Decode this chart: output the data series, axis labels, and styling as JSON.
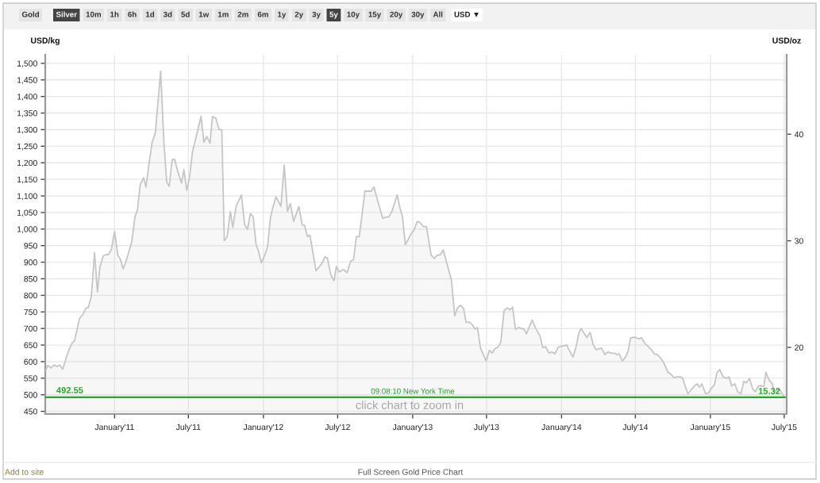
{
  "chart_data": {
    "type": "area",
    "color": "#c6c6c6",
    "ylabel": "USD/kg",
    "y2label": "USD/oz",
    "x": [
      "2010-07-16",
      "2010-07-21",
      "2010-07-29",
      "2010-08-06",
      "2010-08-13",
      "2010-08-19",
      "2010-08-27",
      "2010-09-04",
      "2010-09-12",
      "2010-09-19",
      "2010-09-25",
      "2010-10-07",
      "2010-10-16",
      "2010-10-23",
      "2010-10-29",
      "2010-11-05",
      "2010-11-13",
      "2010-11-20",
      "2010-11-26",
      "2010-12-04",
      "2010-12-11",
      "2010-12-17",
      "2010-12-24",
      "2011-01-01",
      "2011-01-09",
      "2011-01-15",
      "2011-01-22",
      "2011-01-28",
      "2011-02-12",
      "2011-02-20",
      "2011-02-26",
      "2011-03-05",
      "2011-03-13",
      "2011-03-19",
      "2011-03-26",
      "2011-04-03",
      "2011-04-11",
      "2011-04-24",
      "2011-05-02",
      "2011-05-09",
      "2011-05-15",
      "2011-05-22",
      "2011-05-28",
      "2011-06-05",
      "2011-06-14",
      "2011-06-20",
      "2011-06-27",
      "2011-07-04",
      "2011-07-11",
      "2011-07-19",
      "2011-08-01",
      "2011-08-08",
      "2011-08-15",
      "2011-08-23",
      "2011-08-29",
      "2011-09-06",
      "2011-09-14",
      "2011-09-21",
      "2011-09-27",
      "2011-10-04",
      "2011-10-12",
      "2011-10-18",
      "2011-10-26",
      "2011-11-08",
      "2011-11-16",
      "2011-11-23",
      "2011-11-30",
      "2011-12-07",
      "2011-12-14",
      "2011-12-20",
      "2011-12-27",
      "2012-01-04",
      "2012-01-11",
      "2012-01-18",
      "2012-01-24",
      "2012-02-01",
      "2012-02-13",
      "2012-02-21",
      "2012-02-29",
      "2012-03-07",
      "2012-03-15",
      "2012-03-28",
      "2012-04-05",
      "2012-04-11",
      "2012-04-18",
      "2012-04-24",
      "2012-05-09",
      "2012-05-22",
      "2012-05-31",
      "2012-06-06",
      "2012-06-14",
      "2012-06-22",
      "2012-06-28",
      "2012-07-05",
      "2012-07-16",
      "2012-07-24",
      "2012-08-02",
      "2012-08-09",
      "2012-08-16",
      "2012-08-23",
      "2012-09-06",
      "2012-09-21",
      "2012-09-28",
      "2012-10-09",
      "2012-10-20",
      "2012-10-26",
      "2012-11-04",
      "2012-11-11",
      "2012-11-24",
      "2012-12-01",
      "2012-12-07",
      "2012-12-14",
      "2012-12-21",
      "2012-12-29",
      "2013-01-04",
      "2013-01-12",
      "2013-01-19",
      "2013-01-27",
      "2013-02-04",
      "2013-02-15",
      "2013-02-23",
      "2013-03-02",
      "2013-03-10",
      "2013-03-17",
      "2013-04-06",
      "2013-04-14",
      "2013-04-21",
      "2013-04-28",
      "2013-05-06",
      "2013-05-12",
      "2013-05-19",
      "2013-05-27",
      "2013-06-03",
      "2013-06-09",
      "2013-06-16",
      "2013-06-30",
      "2013-07-08",
      "2013-07-15",
      "2013-07-21",
      "2013-07-29",
      "2013-08-05",
      "2013-08-13",
      "2013-08-21",
      "2013-08-27",
      "2013-09-03",
      "2013-09-10",
      "2013-09-18",
      "2013-10-01",
      "2013-10-07",
      "2013-10-21",
      "2013-10-29",
      "2013-11-09",
      "2013-11-16",
      "2013-11-23",
      "2013-12-01",
      "2013-12-08",
      "2013-12-16",
      "2013-12-24",
      "2013-12-30",
      "2014-01-14",
      "2014-01-20",
      "2014-01-29",
      "2014-02-05",
      "2014-02-13",
      "2014-02-18",
      "2014-02-26",
      "2014-03-04",
      "2014-03-12",
      "2014-03-20",
      "2014-03-27",
      "2014-04-09",
      "2014-04-17",
      "2014-04-24",
      "2014-05-03",
      "2014-05-11",
      "2014-05-17",
      "2014-05-22",
      "2014-05-30",
      "2014-06-06",
      "2014-06-13",
      "2014-06-19",
      "2014-06-26",
      "2014-07-02",
      "2014-07-10",
      "2014-07-16",
      "2014-07-25",
      "2014-08-02",
      "2014-08-09",
      "2014-08-17",
      "2014-08-24",
      "2014-08-31",
      "2014-09-08",
      "2014-09-19",
      "2014-09-27",
      "2014-10-04",
      "2014-10-12",
      "2014-10-20",
      "2014-10-25",
      "2014-11-01",
      "2014-11-07",
      "2014-11-15",
      "2014-11-23",
      "2014-11-30",
      "2014-12-05",
      "2014-12-11",
      "2014-12-20",
      "2014-12-27",
      "2015-01-03",
      "2015-01-11",
      "2015-01-17",
      "2015-01-24",
      "2015-02-01",
      "2015-02-09",
      "2015-02-16",
      "2015-02-22",
      "2015-03-02",
      "2015-03-09",
      "2015-03-17",
      "2015-03-24",
      "2015-03-30",
      "2015-04-07",
      "2015-04-15",
      "2015-04-21",
      "2015-04-29",
      "2015-05-06",
      "2015-05-12",
      "2015-05-17",
      "2015-05-25",
      "2015-06-01",
      "2015-06-07",
      "2015-06-14",
      "2015-06-20",
      "2015-06-29"
    ],
    "values": [
      574,
      589,
      581,
      590,
      585,
      590,
      577,
      610,
      638,
      656,
      664,
      730,
      744,
      762,
      764,
      798,
      929,
      810,
      886,
      918,
      923,
      923,
      937,
      993,
      921,
      910,
      880,
      898,
      961,
      1037,
      1057,
      1135,
      1155,
      1127,
      1193,
      1261,
      1290,
      1476,
      1261,
      1141,
      1129,
      1209,
      1211,
      1174,
      1139,
      1179,
      1117,
      1157,
      1233,
      1273,
      1340,
      1262,
      1279,
      1259,
      1339,
      1335,
      1301,
      1299,
      965,
      977,
      1053,
      1005,
      1069,
      1103,
      1013,
      999,
      1047,
      1036,
      953,
      933,
      898,
      921,
      945,
      1033,
      1065,
      1097,
      1069,
      1193,
      1053,
      1077,
      1023,
      1068,
      1013,
      1011,
      977,
      982,
      874,
      894,
      916,
      912,
      863,
      844,
      887,
      871,
      878,
      868,
      903,
      908,
      977,
      977,
      1115,
      1114,
      1127,
      1077,
      1032,
      1036,
      1037,
      1053,
      1103,
      1063,
      1037,
      953,
      969,
      988,
      996,
      1023,
      1020,
      1008,
      1007,
      922,
      911,
      921,
      923,
      937,
      846,
      738,
      762,
      770,
      760,
      718,
      720,
      712,
      698,
      703,
      642,
      602,
      634,
      626,
      638,
      644,
      658,
      754,
      762,
      756,
      764,
      697,
      703,
      698,
      684,
      726,
      702,
      678,
      642,
      645,
      626,
      629,
      624,
      644,
      646,
      650,
      634,
      614,
      642,
      688,
      700,
      684,
      673,
      688,
      650,
      636,
      641,
      621,
      629,
      626,
      625,
      621,
      624,
      602,
      612,
      630,
      671,
      674,
      673,
      669,
      672,
      654,
      645,
      636,
      623,
      621,
      612,
      598,
      568,
      561,
      552,
      554,
      554,
      550,
      523,
      503,
      515,
      527,
      533,
      523,
      533,
      504,
      505,
      519,
      531,
      566,
      576,
      554,
      550,
      554,
      527,
      533,
      509,
      503,
      541,
      536,
      549,
      517,
      509,
      527,
      527,
      525,
      568,
      544,
      535,
      509,
      515,
      517,
      497
    ],
    "xlim": [
      "2010-07-15",
      "2015-07-07"
    ],
    "xticks": [
      {
        "value": "2011-01-01",
        "label": "January'11"
      },
      {
        "value": "2011-07-01",
        "label": "July'11"
      },
      {
        "value": "2012-01-01",
        "label": "January'12"
      },
      {
        "value": "2012-07-01",
        "label": "July'12"
      },
      {
        "value": "2013-01-01",
        "label": "January'13"
      },
      {
        "value": "2013-07-01",
        "label": "July'13"
      },
      {
        "value": "2014-01-01",
        "label": "January'14"
      },
      {
        "value": "2014-07-01",
        "label": "July'14"
      },
      {
        "value": "2015-01-01",
        "label": "January'15"
      },
      {
        "value": "2015-07-01",
        "label": "July'15"
      }
    ],
    "ylim": [
      442,
      1526
    ],
    "yticks": [
      450,
      500,
      550,
      600,
      650,
      700,
      750,
      800,
      850,
      900,
      950,
      {
        "value": 1000,
        "label": "1,000"
      },
      {
        "value": 1050,
        "label": "1,050"
      },
      {
        "value": 1100,
        "label": "1,100"
      },
      {
        "value": 1150,
        "label": "1,150"
      },
      {
        "value": 1200,
        "label": "1,200"
      },
      {
        "value": 1250,
        "label": "1,250"
      },
      {
        "value": 1300,
        "label": "1,300"
      },
      {
        "value": 1350,
        "label": "1,350"
      },
      {
        "value": 1400,
        "label": "1,400"
      },
      {
        "value": 1450,
        "label": "1,450"
      },
      {
        "value": 1500,
        "label": "1,500"
      }
    ],
    "y2lim": [
      13.75,
      47.46
    ],
    "y2ticks": [
      20,
      30,
      40
    ],
    "grid": true,
    "ref_lines": [
      {
        "axis": "y",
        "value": 492.55,
        "label": "492.55",
        "color": "#22aa22"
      }
    ],
    "annotations": [
      "Gold",
      "Silver",
      "10m",
      "1h",
      "6h",
      "1d",
      "3d",
      "5d",
      "1w",
      "1m",
      "2m",
      "6m",
      "1y",
      "2y",
      "3y",
      "5y",
      "10y",
      "15y",
      "20y",
      "30y",
      "All",
      "USD ▼",
      "09:08:10 New York Time",
      "15.32",
      "click chart to zoom in",
      "Add to site",
      "Full Screen Gold Price Chart"
    ]
  }
}
